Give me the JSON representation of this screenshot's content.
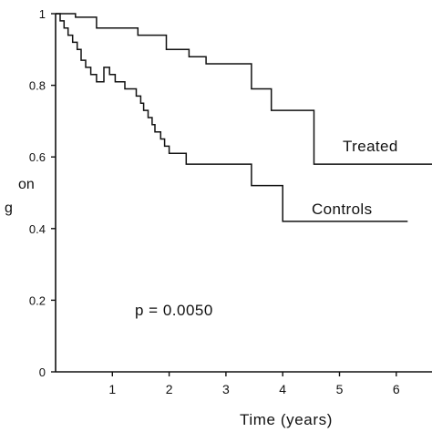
{
  "chart_data": {
    "type": "line",
    "subtype": "step",
    "xlabel": "Time (years)",
    "ylabel_fragments": [
      "on",
      "g"
    ],
    "xlim": [
      0,
      7
    ],
    "ylim": [
      0,
      1
    ],
    "x_ticks": [
      1,
      2,
      3,
      4,
      5,
      6
    ],
    "y_ticks": [
      0,
      0.2,
      0.4,
      0.6,
      0.8,
      1
    ],
    "y_tick_labels": [
      "0",
      "0.2",
      "0.4",
      "0.6",
      "0.8",
      "1"
    ],
    "grid": false,
    "annotation": "p = 0.0050",
    "series": [
      {
        "name": "Treated",
        "x": [
          0,
          0.35,
          0.72,
          1.45,
          1.95,
          2.35,
          2.65,
          3.45,
          3.8,
          4.55,
          6.9
        ],
        "y": [
          1,
          0.99,
          0.96,
          0.94,
          0.9,
          0.88,
          0.86,
          0.79,
          0.73,
          0.58,
          0.58
        ]
      },
      {
        "name": "Controls",
        "x": [
          0,
          0.08,
          0.15,
          0.22,
          0.3,
          0.38,
          0.45,
          0.53,
          0.62,
          0.72,
          0.85,
          0.95,
          1.05,
          1.22,
          1.42,
          1.5,
          1.55,
          1.63,
          1.7,
          1.75,
          1.85,
          1.92,
          2.0,
          2.3,
          2.85,
          3.45,
          4.0,
          6.2
        ],
        "y": [
          1,
          0.98,
          0.96,
          0.94,
          0.92,
          0.9,
          0.87,
          0.85,
          0.83,
          0.81,
          0.85,
          0.83,
          0.81,
          0.79,
          0.77,
          0.75,
          0.73,
          0.71,
          0.69,
          0.67,
          0.65,
          0.63,
          0.61,
          0.58,
          0.58,
          0.52,
          0.42,
          0.42
        ]
      }
    ],
    "series_labels": [
      "Treated",
      "Controls"
    ]
  }
}
